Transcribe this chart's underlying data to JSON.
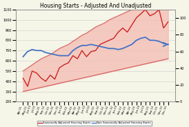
{
  "title": "Housing Starts - Adjusted And Unadjusted",
  "x_labels": [
    "Apr-11",
    "May-11",
    "Jun-11",
    "Jul-11",
    "Aug-11",
    "Sep-11",
    "Oct-11",
    "Nov-11",
    "Dec-11",
    "Jan-12",
    "Feb-12",
    "Mar-12",
    "Apr-12",
    "May-12",
    "Jun-12",
    "Jul-12",
    "Aug-12",
    "Sep-12",
    "Oct-12",
    "Nov-12",
    "Dec-12",
    "Jan-13",
    "Feb-13",
    "Mar-13",
    "Apr-13",
    "May-13",
    "Jun-13",
    "Jul-13",
    "Aug-13",
    "Sep-13",
    "Oct-13",
    "Nov-13",
    "Dec-13"
  ],
  "seasonally_adjusted": [
    430,
    350,
    500,
    480,
    430,
    400,
    460,
    420,
    530,
    560,
    580,
    650,
    620,
    700,
    640,
    690,
    700,
    760,
    780,
    800,
    820,
    880,
    920,
    880,
    950,
    1020,
    1060,
    1100,
    1040,
    1060,
    1100,
    920,
    980
  ],
  "non_seasonally_adjusted": [
    640,
    690,
    710,
    700,
    700,
    680,
    670,
    660,
    650,
    650,
    650,
    700,
    730,
    750,
    750,
    760,
    750,
    740,
    730,
    720,
    720,
    710,
    720,
    740,
    760,
    800,
    820,
    830,
    800,
    800,
    790,
    770,
    760
  ],
  "band_lower": [
    300,
    310,
    320,
    330,
    340,
    350,
    360,
    370,
    380,
    390,
    400,
    410,
    420,
    430,
    440,
    450,
    460,
    470,
    480,
    490,
    500,
    510,
    520,
    530,
    540,
    550,
    560,
    570,
    580,
    590,
    600,
    610,
    620
  ],
  "band_upper": [
    500,
    530,
    560,
    590,
    620,
    640,
    660,
    690,
    720,
    740,
    760,
    790,
    820,
    850,
    870,
    900,
    930,
    950,
    970,
    1000,
    1020,
    1040,
    1060,
    1080,
    1100,
    1120,
    1140,
    1160,
    1180,
    1190,
    1200,
    1200,
    1200
  ],
  "red_line_color": "#cc2222",
  "blue_line_color": "#4472c4",
  "band_fill_color": "#f4b8b0",
  "band_border_color": "#cc4444",
  "left_ylim": [
    200,
    1100
  ],
  "left_yticks": [
    200,
    300,
    400,
    500,
    600,
    700,
    800,
    900,
    1000,
    1100
  ],
  "right_ylim": [
    0,
    110
  ],
  "right_yticks": [
    0,
    20,
    40,
    60,
    80,
    100
  ],
  "legend_sa": "Seasonally Adjusted Housing Starts",
  "legend_nsa": "Non Seasonally Adjusted Housing Starts",
  "bg_color": "#f5f5e8",
  "grid_color": "#cccccc"
}
